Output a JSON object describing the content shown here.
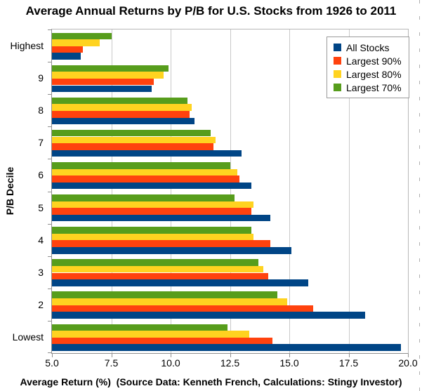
{
  "chart_data": {
    "type": "bar",
    "orientation": "horizontal",
    "title": "Average Annual Returns by P/B for U.S. Stocks from 1926 to 2011",
    "xlabel": "Average Return (%)  (Source Data: Kenneth French, Calculations: Stingy Investor)",
    "ylabel": "P/B Decile",
    "categories": [
      "Highest",
      "9",
      "8",
      "7",
      "6",
      "5",
      "4",
      "3",
      "2",
      "Lowest"
    ],
    "series": [
      {
        "name": "All Stocks",
        "color": "#004586",
        "values": [
          6.2,
          9.2,
          11.0,
          13.0,
          13.4,
          14.2,
          15.1,
          15.8,
          18.2,
          19.7
        ]
      },
      {
        "name": "Largest 90%",
        "color": "#FF420E",
        "values": [
          6.3,
          9.3,
          10.8,
          11.8,
          12.9,
          13.4,
          14.2,
          14.1,
          16.0,
          14.3
        ]
      },
      {
        "name": "Largest 80%",
        "color": "#FFD320",
        "values": [
          7.0,
          9.7,
          10.9,
          11.9,
          12.8,
          13.5,
          13.5,
          13.9,
          14.9,
          13.3
        ]
      },
      {
        "name": "Largest 70%",
        "color": "#579D1C",
        "values": [
          7.5,
          9.9,
          10.7,
          11.7,
          12.5,
          12.7,
          13.4,
          13.7,
          14.5,
          12.4
        ]
      }
    ],
    "bar_order_within_group_top_to_bottom": [
      "Largest 70%",
      "Largest 80%",
      "Largest 90%",
      "All Stocks"
    ],
    "xlim": [
      5.0,
      20.0
    ],
    "xticks": [
      5.0,
      7.5,
      10.0,
      12.5,
      15.0,
      17.5,
      20.0
    ],
    "xtick_labels": [
      "5.0",
      "7.5",
      "10.0",
      "12.5",
      "15.0",
      "17.5",
      "20.0"
    ],
    "legend_position": "top-right-inside",
    "legend_labels": [
      "All Stocks",
      "Largest 90%",
      "Largest 80%",
      "Largest 70%"
    ],
    "grid": "vertical-only"
  }
}
